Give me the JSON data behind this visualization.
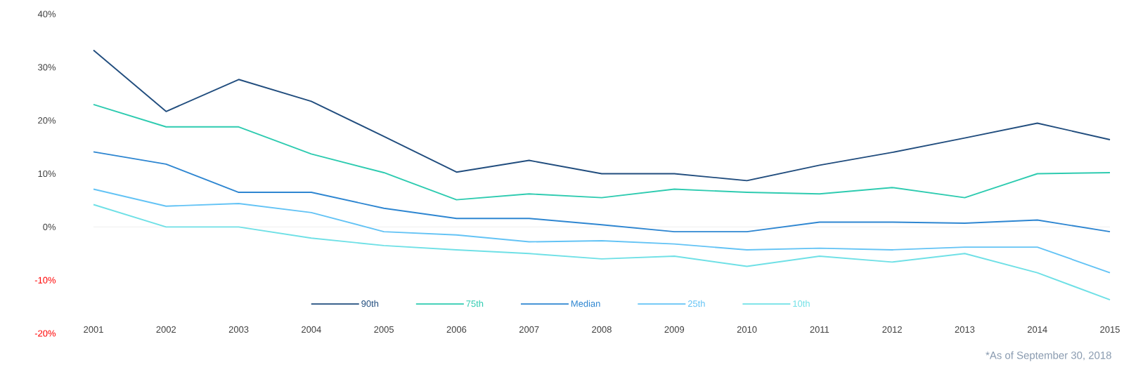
{
  "chart_data": {
    "type": "line",
    "categories": [
      "2001",
      "2002",
      "2003",
      "2004",
      "2005",
      "2006",
      "2007",
      "2008",
      "2009",
      "2010",
      "2011",
      "2012",
      "2013",
      "2014",
      "2015"
    ],
    "series": [
      {
        "name": "90th",
        "color": "#214d7e",
        "values": [
          33.2,
          21.7,
          27.7,
          23.6,
          17.0,
          10.3,
          12.5,
          10.0,
          10.0,
          8.7,
          11.6,
          14.0,
          16.7,
          19.5,
          16.4
        ]
      },
      {
        "name": "75th",
        "color": "#2ecbb0",
        "values": [
          23.0,
          18.8,
          18.8,
          13.7,
          10.2,
          5.1,
          6.2,
          5.5,
          7.1,
          6.5,
          6.2,
          7.4,
          5.5,
          10.0,
          10.2
        ]
      },
      {
        "name": "Median",
        "color": "#2e86d1",
        "values": [
          14.1,
          11.8,
          6.5,
          6.5,
          3.5,
          1.6,
          1.6,
          0.4,
          -0.9,
          -0.9,
          0.9,
          0.9,
          0.7,
          1.3,
          -0.9
        ]
      },
      {
        "name": "25th",
        "color": "#63c3f5",
        "values": [
          7.1,
          3.9,
          4.4,
          2.7,
          -0.9,
          -1.5,
          -2.8,
          -2.6,
          -3.2,
          -4.3,
          -4.0,
          -4.3,
          -3.8,
          -3.8,
          -8.6
        ]
      },
      {
        "name": "10th",
        "color": "#6fe0e6",
        "values": [
          4.2,
          0,
          0,
          -2.1,
          -3.5,
          -4.3,
          -5.0,
          -6.0,
          -5.5,
          -7.4,
          -5.5,
          -6.6,
          -5.0,
          -8.6,
          -13.7
        ]
      }
    ],
    "ylim": [
      -20,
      40
    ],
    "yticks": [
      {
        "value": -20,
        "label": "-20%"
      },
      {
        "value": -10,
        "label": "-10%"
      },
      {
        "value": 0,
        "label": "0%"
      },
      {
        "value": 10,
        "label": "10%"
      },
      {
        "value": 20,
        "label": "20%"
      },
      {
        "value": 30,
        "label": "30%"
      },
      {
        "value": 40,
        "label": "40%"
      }
    ],
    "legend": "bottom",
    "marker": "none",
    "line_style": "solid",
    "annotations": [
      "*As of September 30, 2018"
    ]
  }
}
